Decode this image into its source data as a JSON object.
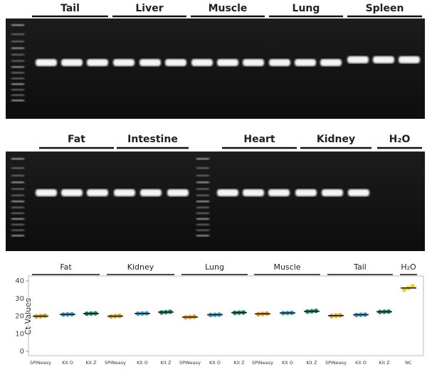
{
  "gels": {
    "top": {
      "labels": [
        "Tail",
        "Liver",
        "Muscle",
        "Lung",
        "Spleen"
      ]
    },
    "bottom": {
      "labels": [
        "Fat",
        "Intestine",
        "Heart",
        "Kidney",
        "H₂O"
      ]
    }
  },
  "chart_data": {
    "type": "dot",
    "ylabel": "Ct Values",
    "groups": [
      "Fat",
      "Kidney",
      "Lung",
      "Muscle",
      "Tail",
      "H₂O"
    ],
    "categories": [
      "SPINeasy",
      "Kit O",
      "Kit Z",
      "SPINeasy",
      "Kit O",
      "Kit Z",
      "SPINeasy",
      "Kit O",
      "Kit Z",
      "SPINeasy",
      "Kit O",
      "Kit Z",
      "SPINeasy",
      "Kit O",
      "Kit Z",
      "NC"
    ],
    "values": [
      20,
      21,
      21.5,
      20,
      21.5,
      22.3,
      19.5,
      20.8,
      22,
      21.3,
      21.8,
      22.8,
      20.3,
      20.8,
      22.5,
      36
    ],
    "replicates": [
      [
        19.8,
        20,
        20.2
      ],
      [
        20.9,
        21,
        21.1
      ],
      [
        21.4,
        21.5,
        21.6
      ],
      [
        19.8,
        20,
        20.2
      ],
      [
        21.4,
        21.5,
        21.6
      ],
      [
        22.1,
        22.3,
        22.5
      ],
      [
        19.3,
        19.5,
        19.7
      ],
      [
        20.7,
        20.8,
        20.9
      ],
      [
        21.9,
        22,
        22.1
      ],
      [
        21.1,
        21.3,
        21.5
      ],
      [
        21.7,
        21.8,
        21.9
      ],
      [
        22.6,
        22.8,
        23
      ],
      [
        20.1,
        20.3,
        20.5
      ],
      [
        20.7,
        20.8,
        20.9
      ],
      [
        22.4,
        22.5,
        22.6
      ],
      [
        35,
        36,
        37
      ]
    ],
    "colors": [
      "#e8a020",
      "#3ba0c8",
      "#1a8a5a",
      "#e8a020",
      "#3ba0c8",
      "#1a8a5a",
      "#e8a020",
      "#3ba0c8",
      "#1a8a5a",
      "#e8a020",
      "#3ba0c8",
      "#1a8a5a",
      "#e8a020",
      "#3ba0c8",
      "#1a8a5a",
      "#e8d030"
    ],
    "ylim": [
      0,
      40
    ],
    "yticks": [
      0,
      10,
      20,
      30,
      40
    ]
  }
}
